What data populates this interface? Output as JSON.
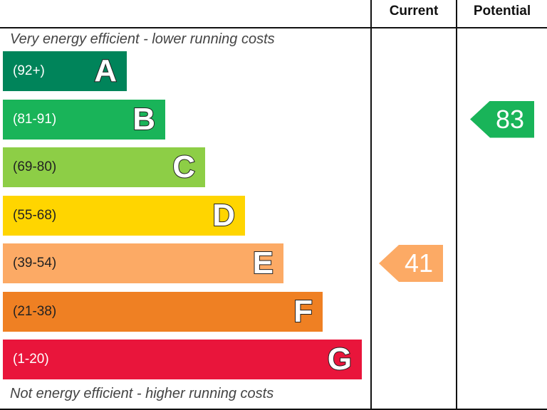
{
  "headers": {
    "current": "Current",
    "potential": "Potential"
  },
  "captions": {
    "top": "Very energy efficient - lower running costs",
    "bottom": "Not energy efficient - higher running costs"
  },
  "chart_data": {
    "type": "bar",
    "categories": [
      "A",
      "B",
      "C",
      "D",
      "E",
      "F",
      "G"
    ],
    "ranges": [
      "(92+)",
      "(81-91)",
      "(69-80)",
      "(55-68)",
      "(39-54)",
      "(21-38)",
      "(1-20)"
    ],
    "colors": [
      "#00845a",
      "#19b459",
      "#8dce46",
      "#ffd500",
      "#fcaa65",
      "#ef8023",
      "#e9153b"
    ],
    "current": {
      "value": 41,
      "band": "E",
      "color": "#fcaa65"
    },
    "potential": {
      "value": 83,
      "band": "B",
      "color": "#19b459"
    }
  }
}
